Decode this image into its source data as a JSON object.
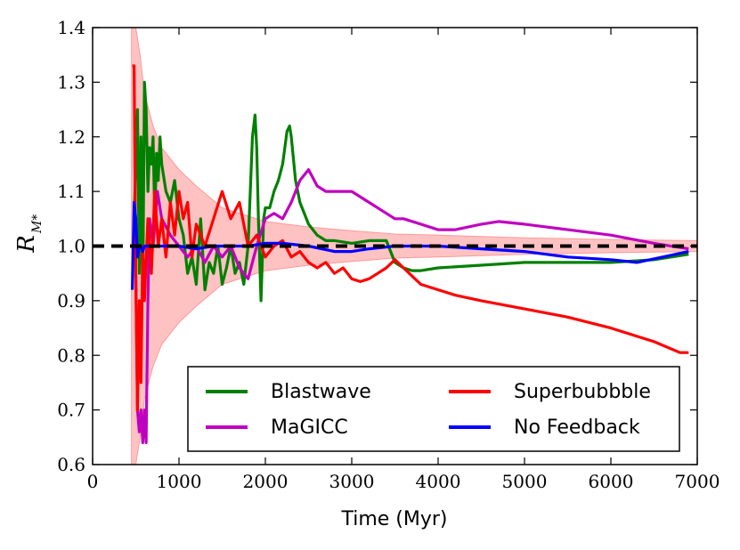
{
  "chart_data": {
    "type": "line",
    "xlabel": "Time (Myr)",
    "ylabel": "R",
    "ylabel_subscript": "M*",
    "xlim": [
      0,
      7000
    ],
    "ylim": [
      0.6,
      1.4
    ],
    "xticks": [
      0,
      1000,
      2000,
      3000,
      4000,
      5000,
      6000,
      7000
    ],
    "yticks": [
      0.6,
      0.7,
      0.8,
      0.9,
      1.0,
      1.1,
      1.2,
      1.3,
      1.4
    ],
    "xtick_labels": [
      "0",
      "1000",
      "2000",
      "3000",
      "4000",
      "5000",
      "6000",
      "7000"
    ],
    "ytick_labels": [
      "0.6",
      "0.7",
      "0.8",
      "0.9",
      "1.0",
      "1.1",
      "1.2",
      "1.3",
      "1.4"
    ],
    "grid": false,
    "legend_position": "lower-right",
    "reference_line": {
      "y": 1.0,
      "style": "dashed",
      "color": "#000000"
    },
    "band": {
      "color": "#ff9999",
      "x": [
        450,
        500,
        550,
        600,
        700,
        800,
        900,
        1000,
        1200,
        1500,
        2000,
        2500,
        3000,
        3500,
        4000,
        5000,
        6000,
        7000
      ],
      "upper": [
        1.4,
        1.4,
        1.35,
        1.28,
        1.22,
        1.18,
        1.16,
        1.14,
        1.11,
        1.07,
        1.045,
        1.035,
        1.028,
        1.022,
        1.02,
        1.015,
        1.012,
        1.01
      ],
      "lower": [
        0.6,
        0.6,
        0.65,
        0.72,
        0.78,
        0.82,
        0.84,
        0.86,
        0.89,
        0.93,
        0.955,
        0.965,
        0.972,
        0.978,
        0.98,
        0.985,
        0.988,
        0.99
      ]
    },
    "series": [
      {
        "name": "Blastwave",
        "color": "#008000",
        "x": [
          480,
          520,
          540,
          560,
          580,
          600,
          620,
          640,
          660,
          680,
          700,
          720,
          740,
          760,
          780,
          800,
          850,
          900,
          950,
          1000,
          1050,
          1100,
          1150,
          1200,
          1250,
          1300,
          1350,
          1400,
          1450,
          1500,
          1550,
          1600,
          1650,
          1700,
          1750,
          1800,
          1850,
          1880,
          1900,
          1920,
          1950,
          1980,
          2000,
          2050,
          2100,
          2150,
          2200,
          2250,
          2280,
          2300,
          2350,
          2400,
          2500,
          2600,
          2700,
          2800,
          3000,
          3200,
          3400,
          3500,
          3600,
          3700,
          3800,
          4000,
          4500,
          5000,
          5500,
          6000,
          6500,
          6900
        ],
        "y": [
          1.05,
          1.25,
          0.95,
          1.2,
          0.9,
          1.3,
          1.25,
          1.1,
          1.18,
          1.15,
          1.2,
          1.05,
          1.17,
          1.12,
          1.2,
          1.15,
          1.1,
          1.08,
          1.12,
          1.05,
          1.02,
          0.95,
          0.98,
          0.93,
          1.05,
          0.92,
          0.97,
          0.95,
          1.0,
          0.93,
          0.96,
          1.0,
          0.95,
          0.97,
          0.93,
          1.0,
          1.2,
          1.24,
          1.18,
          1.05,
          0.9,
          1.05,
          1.07,
          1.07,
          1.1,
          1.12,
          1.15,
          1.21,
          1.22,
          1.2,
          1.12,
          1.08,
          1.04,
          1.02,
          1.01,
          1.01,
          1.005,
          1.01,
          1.01,
          0.97,
          0.96,
          0.955,
          0.955,
          0.96,
          0.965,
          0.97,
          0.97,
          0.97,
          0.975,
          0.985
        ]
      },
      {
        "name": "MaGICC",
        "color": "#c000c0",
        "x": [
          500,
          520,
          540,
          560,
          580,
          600,
          620,
          640,
          660,
          700,
          750,
          800,
          900,
          1000,
          1100,
          1200,
          1300,
          1400,
          1500,
          1600,
          1700,
          1800,
          1900,
          2000,
          2100,
          2200,
          2300,
          2400,
          2500,
          2600,
          2700,
          2800,
          3000,
          3200,
          3400,
          3500,
          3600,
          3800,
          4000,
          4200,
          4500,
          4700,
          5000,
          5500,
          6000,
          6500,
          6900
        ],
        "y": [
          0.95,
          0.7,
          0.66,
          0.7,
          0.64,
          0.7,
          0.64,
          0.9,
          1.05,
          1.0,
          1.1,
          1.05,
          1.02,
          1.0,
          0.98,
          1.0,
          0.97,
          1.0,
          0.98,
          1.0,
          0.96,
          0.94,
          1.0,
          1.05,
          1.06,
          1.05,
          1.08,
          1.12,
          1.14,
          1.11,
          1.1,
          1.1,
          1.1,
          1.08,
          1.06,
          1.05,
          1.05,
          1.04,
          1.03,
          1.03,
          1.04,
          1.045,
          1.04,
          1.03,
          1.02,
          1.005,
          0.995
        ]
      },
      {
        "name": "Superbubbble",
        "color": "#ff0000",
        "x": [
          460,
          480,
          500,
          520,
          540,
          560,
          580,
          600,
          640,
          680,
          720,
          760,
          800,
          850,
          900,
          950,
          1000,
          1050,
          1100,
          1150,
          1200,
          1300,
          1400,
          1500,
          1600,
          1700,
          1800,
          1900,
          2000,
          2100,
          2200,
          2300,
          2400,
          2500,
          2600,
          2700,
          2800,
          2900,
          3000,
          3100,
          3200,
          3300,
          3400,
          3500,
          3600,
          3700,
          3800,
          4000,
          4200,
          4500,
          5000,
          5500,
          6000,
          6500,
          6800,
          6900
        ],
        "y": [
          1.33,
          1.33,
          0.95,
          0.7,
          0.9,
          0.75,
          1.0,
          0.9,
          1.05,
          0.95,
          1.1,
          1.0,
          1.05,
          0.98,
          1.08,
          1.02,
          1.1,
          1.05,
          1.08,
          0.98,
          1.04,
          1.0,
          1.05,
          1.1,
          1.05,
          1.08,
          1.0,
          1.02,
          0.98,
          1.0,
          1.01,
          0.98,
          0.99,
          0.97,
          0.96,
          0.97,
          0.95,
          0.96,
          0.94,
          0.935,
          0.94,
          0.95,
          0.96,
          0.975,
          0.96,
          0.945,
          0.93,
          0.92,
          0.91,
          0.9,
          0.885,
          0.87,
          0.85,
          0.825,
          0.805,
          0.805
        ]
      },
      {
        "name": "No Feedback",
        "color": "#0000ff",
        "x": [
          460,
          480,
          500,
          520,
          540,
          560,
          580,
          600,
          700,
          800,
          1000,
          1200,
          1400,
          1600,
          1800,
          2000,
          2200,
          2500,
          2800,
          3000,
          3200,
          3500,
          4000,
          4500,
          5000,
          5500,
          6000,
          6300,
          6600,
          6900
        ],
        "y": [
          0.92,
          1.08,
          1.05,
          0.98,
          1.0,
          1.0,
          0.99,
          1.0,
          1.0,
          1.0,
          1.0,
          0.995,
          1.0,
          1.0,
          1.0,
          1.005,
          1.005,
          1.0,
          0.99,
          0.99,
          0.995,
          1.0,
          1.0,
          0.995,
          0.99,
          0.98,
          0.975,
          0.97,
          0.98,
          0.99
        ]
      }
    ]
  }
}
